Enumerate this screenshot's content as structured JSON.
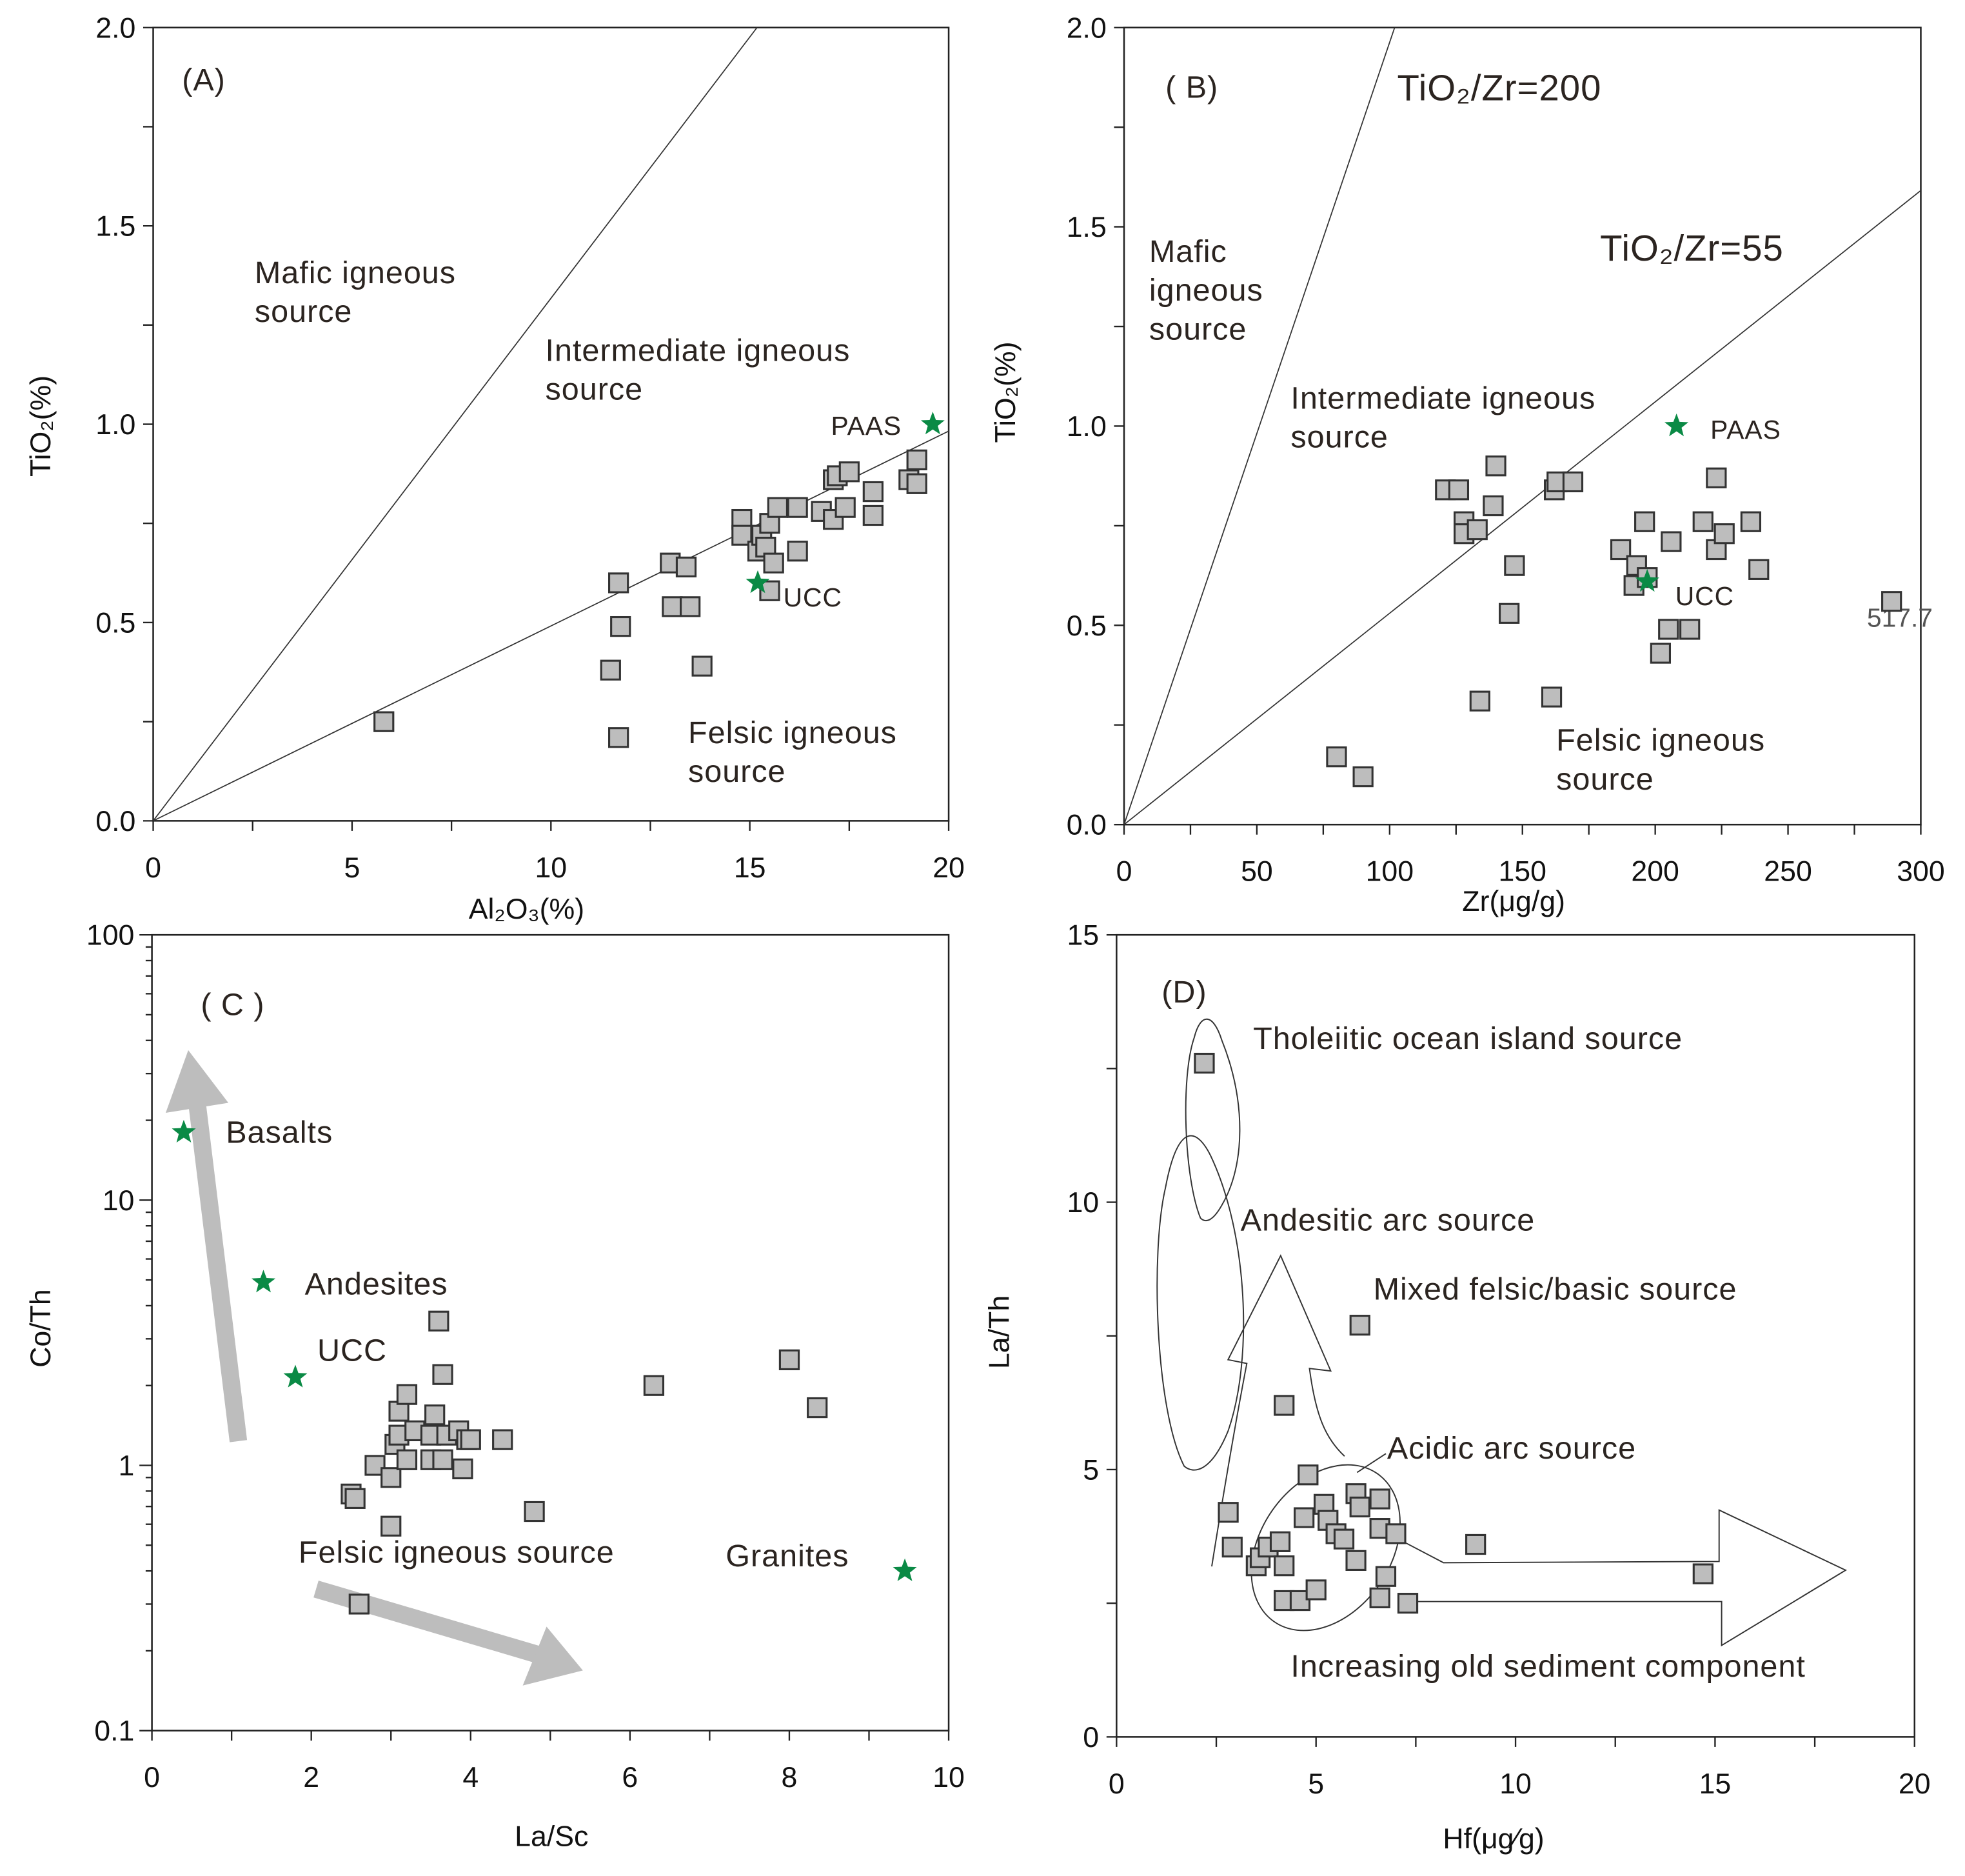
{
  "colors": {
    "sample": "#bdbdbd",
    "reference_star": "#0a8a45"
  },
  "chart_data": [
    {
      "id": "A",
      "type": "scatter",
      "panel_label": "(A)",
      "xlabel": "Al₂O₃(%)",
      "ylabel": "TiO₂(%)",
      "xlim": [
        0,
        20
      ],
      "ylim": [
        0,
        2
      ],
      "xticks": [
        0,
        5,
        10,
        15,
        20
      ],
      "yticks": [
        "0.0",
        "0.5",
        "1.0",
        "1.5",
        "2.0"
      ],
      "annotations": {
        "mafic_1": "Mafic igneous",
        "mafic_2": "source",
        "inter_1": "Intermediate igneous",
        "inter_2": "source",
        "felsic_1": "Felsic igneous",
        "felsic_2": "source",
        "paas": "PAAS",
        "ucc": "UCC"
      },
      "lines": [
        {
          "name": "mafic-intermediate boundary",
          "slope": 0.1316
        },
        {
          "name": "intermediate-felsic boundary",
          "slope": 0.049
        }
      ],
      "reference_points": [
        {
          "name": "PAAS",
          "x": 19.6,
          "y": 1.0
        },
        {
          "name": "UCC",
          "x": 15.2,
          "y": 0.6
        }
      ],
      "points": [
        [
          5.8,
          0.25
        ],
        [
          11.5,
          0.38
        ],
        [
          11.7,
          0.21
        ],
        [
          11.7,
          0.6
        ],
        [
          11.75,
          0.49
        ],
        [
          13.0,
          0.65
        ],
        [
          13.05,
          0.54
        ],
        [
          13.4,
          0.64
        ],
        [
          13.5,
          0.54
        ],
        [
          13.8,
          0.39
        ],
        [
          14.8,
          0.76
        ],
        [
          14.8,
          0.72
        ],
        [
          15.2,
          0.68
        ],
        [
          15.3,
          0.72
        ],
        [
          15.4,
          0.69
        ],
        [
          15.5,
          0.58
        ],
        [
          15.5,
          0.75
        ],
        [
          15.6,
          0.65
        ],
        [
          15.7,
          0.79
        ],
        [
          16.2,
          0.79
        ],
        [
          16.2,
          0.68
        ],
        [
          16.8,
          0.78
        ],
        [
          17.1,
          0.86
        ],
        [
          17.1,
          0.76
        ],
        [
          17.2,
          0.87
        ],
        [
          17.4,
          0.79
        ],
        [
          17.5,
          0.88
        ],
        [
          18.1,
          0.83
        ],
        [
          18.1,
          0.77
        ],
        [
          19.0,
          0.86
        ],
        [
          19.2,
          0.91
        ],
        [
          19.2,
          0.85
        ]
      ]
    },
    {
      "id": "B",
      "type": "scatter",
      "panel_label": "( B)",
      "xlabel": "Zr(μg/g)",
      "ylabel": "TiO₂(%)",
      "xlim": [
        0,
        300
      ],
      "ylim": [
        0,
        2
      ],
      "xticks": [
        0,
        50,
        100,
        150,
        200,
        250,
        300
      ],
      "yticks": [
        "0.0",
        "0.5",
        "1.0",
        "1.5",
        "2.0"
      ],
      "annotations": {
        "ratio_200": "TiO₂/Zr=200",
        "ratio_55": "TiO₂/Zr=55",
        "mafic_1": "Mafic",
        "mafic_2": "igneous",
        "mafic_3": "source",
        "inter_1": "Intermediate igneous",
        "inter_2": "source",
        "felsic_1": "Felsic igneous",
        "felsic_2": "source",
        "paas": "PAAS",
        "ucc": "UCC",
        "offscale": "517.7"
      },
      "lines": [
        {
          "name": "TiO2/Zr=200",
          "to": [
            102,
            2.0
          ]
        },
        {
          "name": "TiO2/Zr=55",
          "to": [
            300,
            1.59
          ]
        }
      ],
      "reference_points": [
        {
          "name": "PAAS",
          "x": 208,
          "y": 1.0
        },
        {
          "name": "UCC",
          "x": 197,
          "y": 0.61
        }
      ],
      "points": [
        [
          80,
          0.17
        ],
        [
          90,
          0.12
        ],
        [
          121,
          0.84
        ],
        [
          126,
          0.84
        ],
        [
          128,
          0.76
        ],
        [
          128,
          0.73
        ],
        [
          133,
          0.74
        ],
        [
          134,
          0.31
        ],
        [
          139,
          0.8
        ],
        [
          140,
          0.9
        ],
        [
          145,
          0.53
        ],
        [
          147,
          0.65
        ],
        [
          161,
          0.32
        ],
        [
          162,
          0.84
        ],
        [
          163,
          0.86
        ],
        [
          169,
          0.86
        ],
        [
          187,
          0.69
        ],
        [
          192,
          0.6
        ],
        [
          193,
          0.65
        ],
        [
          196,
          0.76
        ],
        [
          197,
          0.62
        ],
        [
          202,
          0.43
        ],
        [
          205,
          0.49
        ],
        [
          206,
          0.71
        ],
        [
          213,
          0.49
        ],
        [
          218,
          0.76
        ],
        [
          223,
          0.87
        ],
        [
          223,
          0.69
        ],
        [
          226,
          0.73
        ],
        [
          236,
          0.76
        ],
        [
          239,
          0.64
        ],
        [
          289,
          0.56
        ]
      ]
    },
    {
      "id": "C",
      "type": "scatter",
      "panel_label": "( C )",
      "xlabel": "La/Sc",
      "ylabel": "Co/Th",
      "yscale": "log",
      "xlim": [
        0,
        10
      ],
      "ylim": [
        0.1,
        100
      ],
      "xticks": [
        0,
        2,
        4,
        6,
        8,
        10
      ],
      "yticks": [
        "0.1",
        "1",
        "10",
        "100"
      ],
      "annotations": {
        "basalts": "Basalts",
        "andesites": "Andesites",
        "ucc": "UCC",
        "felsic": "Felsic igneous source",
        "granites": "Granites"
      },
      "reference_points": [
        {
          "name": "Basalts",
          "x": 0.4,
          "y": 18
        },
        {
          "name": "Andesites",
          "x": 1.4,
          "y": 4.9
        },
        {
          "name": "UCC",
          "x": 1.8,
          "y": 2.15
        },
        {
          "name": "Granites",
          "x": 9.45,
          "y": 0.4
        }
      ],
      "points": [
        [
          2.5,
          0.78
        ],
        [
          2.55,
          0.75
        ],
        [
          2.6,
          0.3
        ],
        [
          2.8,
          1.0
        ],
        [
          3.0,
          0.9
        ],
        [
          3.0,
          0.59
        ],
        [
          3.05,
          1.2
        ],
        [
          3.1,
          1.3
        ],
        [
          3.1,
          1.6
        ],
        [
          3.2,
          1.85
        ],
        [
          3.2,
          1.05
        ],
        [
          3.3,
          1.35
        ],
        [
          3.5,
          1.05
        ],
        [
          3.5,
          1.3
        ],
        [
          3.55,
          1.55
        ],
        [
          3.6,
          3.5
        ],
        [
          3.65,
          2.2
        ],
        [
          3.65,
          1.05
        ],
        [
          3.7,
          1.3
        ],
        [
          3.85,
          1.35
        ],
        [
          3.9,
          0.97
        ],
        [
          3.95,
          1.25
        ],
        [
          4.0,
          1.25
        ],
        [
          4.4,
          1.25
        ],
        [
          4.8,
          0.67
        ],
        [
          6.3,
          2.0
        ],
        [
          8.0,
          2.5
        ],
        [
          8.35,
          1.65
        ]
      ]
    },
    {
      "id": "D",
      "type": "scatter",
      "panel_label": "(D)",
      "xlabel": "Hf(μg∕g)",
      "ylabel": "La/Th",
      "xlim": [
        0,
        20
      ],
      "ylim": [
        0,
        15
      ],
      "xticks": [
        0,
        5,
        10,
        15,
        20
      ],
      "yticks": [
        "0",
        "5",
        "10",
        "15"
      ],
      "annotations": {
        "tholeiitic": "Tholeiitic ocean island source",
        "andesitic": "Andesitic arc source",
        "mixed": "Mixed felsic/basic source",
        "acidic": "Acidic arc source",
        "old_sediment": "Increasing old sediment component"
      },
      "points": [
        [
          2.2,
          12.6
        ],
        [
          2.8,
          4.2
        ],
        [
          2.9,
          3.55
        ],
        [
          3.5,
          3.2
        ],
        [
          3.6,
          3.35
        ],
        [
          3.8,
          3.55
        ],
        [
          4.1,
          3.65
        ],
        [
          4.2,
          3.2
        ],
        [
          4.2,
          2.55
        ],
        [
          4.2,
          6.2
        ],
        [
          4.6,
          2.55
        ],
        [
          4.7,
          4.1
        ],
        [
          4.8,
          4.9
        ],
        [
          5.0,
          2.75
        ],
        [
          5.2,
          4.35
        ],
        [
          5.3,
          4.05
        ],
        [
          5.5,
          3.8
        ],
        [
          5.7,
          3.7
        ],
        [
          6.0,
          4.55
        ],
        [
          6.0,
          3.3
        ],
        [
          6.1,
          4.3
        ],
        [
          6.1,
          7.7
        ],
        [
          6.6,
          4.45
        ],
        [
          6.6,
          3.9
        ],
        [
          6.6,
          2.6
        ],
        [
          6.75,
          3.0
        ],
        [
          7.0,
          3.8
        ],
        [
          7.3,
          2.5
        ],
        [
          9.0,
          3.6
        ],
        [
          14.7,
          3.05
        ]
      ]
    }
  ]
}
